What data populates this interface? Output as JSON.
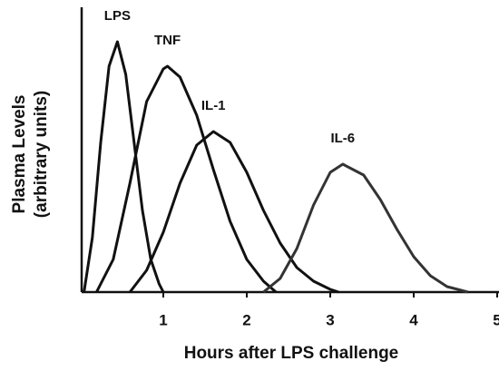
{
  "chart_data": {
    "type": "line",
    "xlabel": "Hours after LPS challenge",
    "ylabel": [
      "Plasma Levels",
      "(arbitrary units)"
    ],
    "xlim": [
      0,
      5
    ],
    "xticks": [
      1,
      2,
      3,
      4,
      5
    ],
    "ylim": [
      0,
      100
    ],
    "color": "#111111",
    "series": [
      {
        "name": "LPS",
        "color": "#111111",
        "x": [
          0.05,
          0.15,
          0.25,
          0.35,
          0.45,
          0.55,
          0.65,
          0.75,
          0.85,
          0.95,
          1.0
        ],
        "values": [
          0,
          20,
          55,
          83,
          92,
          80,
          55,
          30,
          12,
          3,
          0
        ]
      },
      {
        "name": "TNF",
        "color": "#111111",
        "x": [
          0.2,
          0.4,
          0.6,
          0.8,
          1.0,
          1.05,
          1.2,
          1.4,
          1.6,
          1.8,
          2.0,
          2.2,
          2.35
        ],
        "values": [
          0,
          12,
          40,
          70,
          82,
          83,
          79,
          65,
          45,
          26,
          12,
          4,
          0
        ]
      },
      {
        "name": "IL-1",
        "color": "#111111",
        "x": [
          0.6,
          0.8,
          1.0,
          1.2,
          1.4,
          1.6,
          1.8,
          2.0,
          2.2,
          2.4,
          2.6,
          2.8,
          3.0,
          3.1
        ],
        "values": [
          0,
          8,
          22,
          40,
          54,
          59,
          55,
          44,
          30,
          18,
          9,
          4,
          1,
          0
        ]
      },
      {
        "name": "IL-6",
        "color": "#333333",
        "x": [
          2.2,
          2.4,
          2.6,
          2.8,
          3.0,
          3.15,
          3.4,
          3.6,
          3.8,
          4.0,
          4.2,
          4.4,
          4.65
        ],
        "values": [
          0,
          5,
          16,
          32,
          44,
          47,
          43,
          34,
          23,
          13,
          6,
          2,
          0
        ]
      }
    ]
  }
}
